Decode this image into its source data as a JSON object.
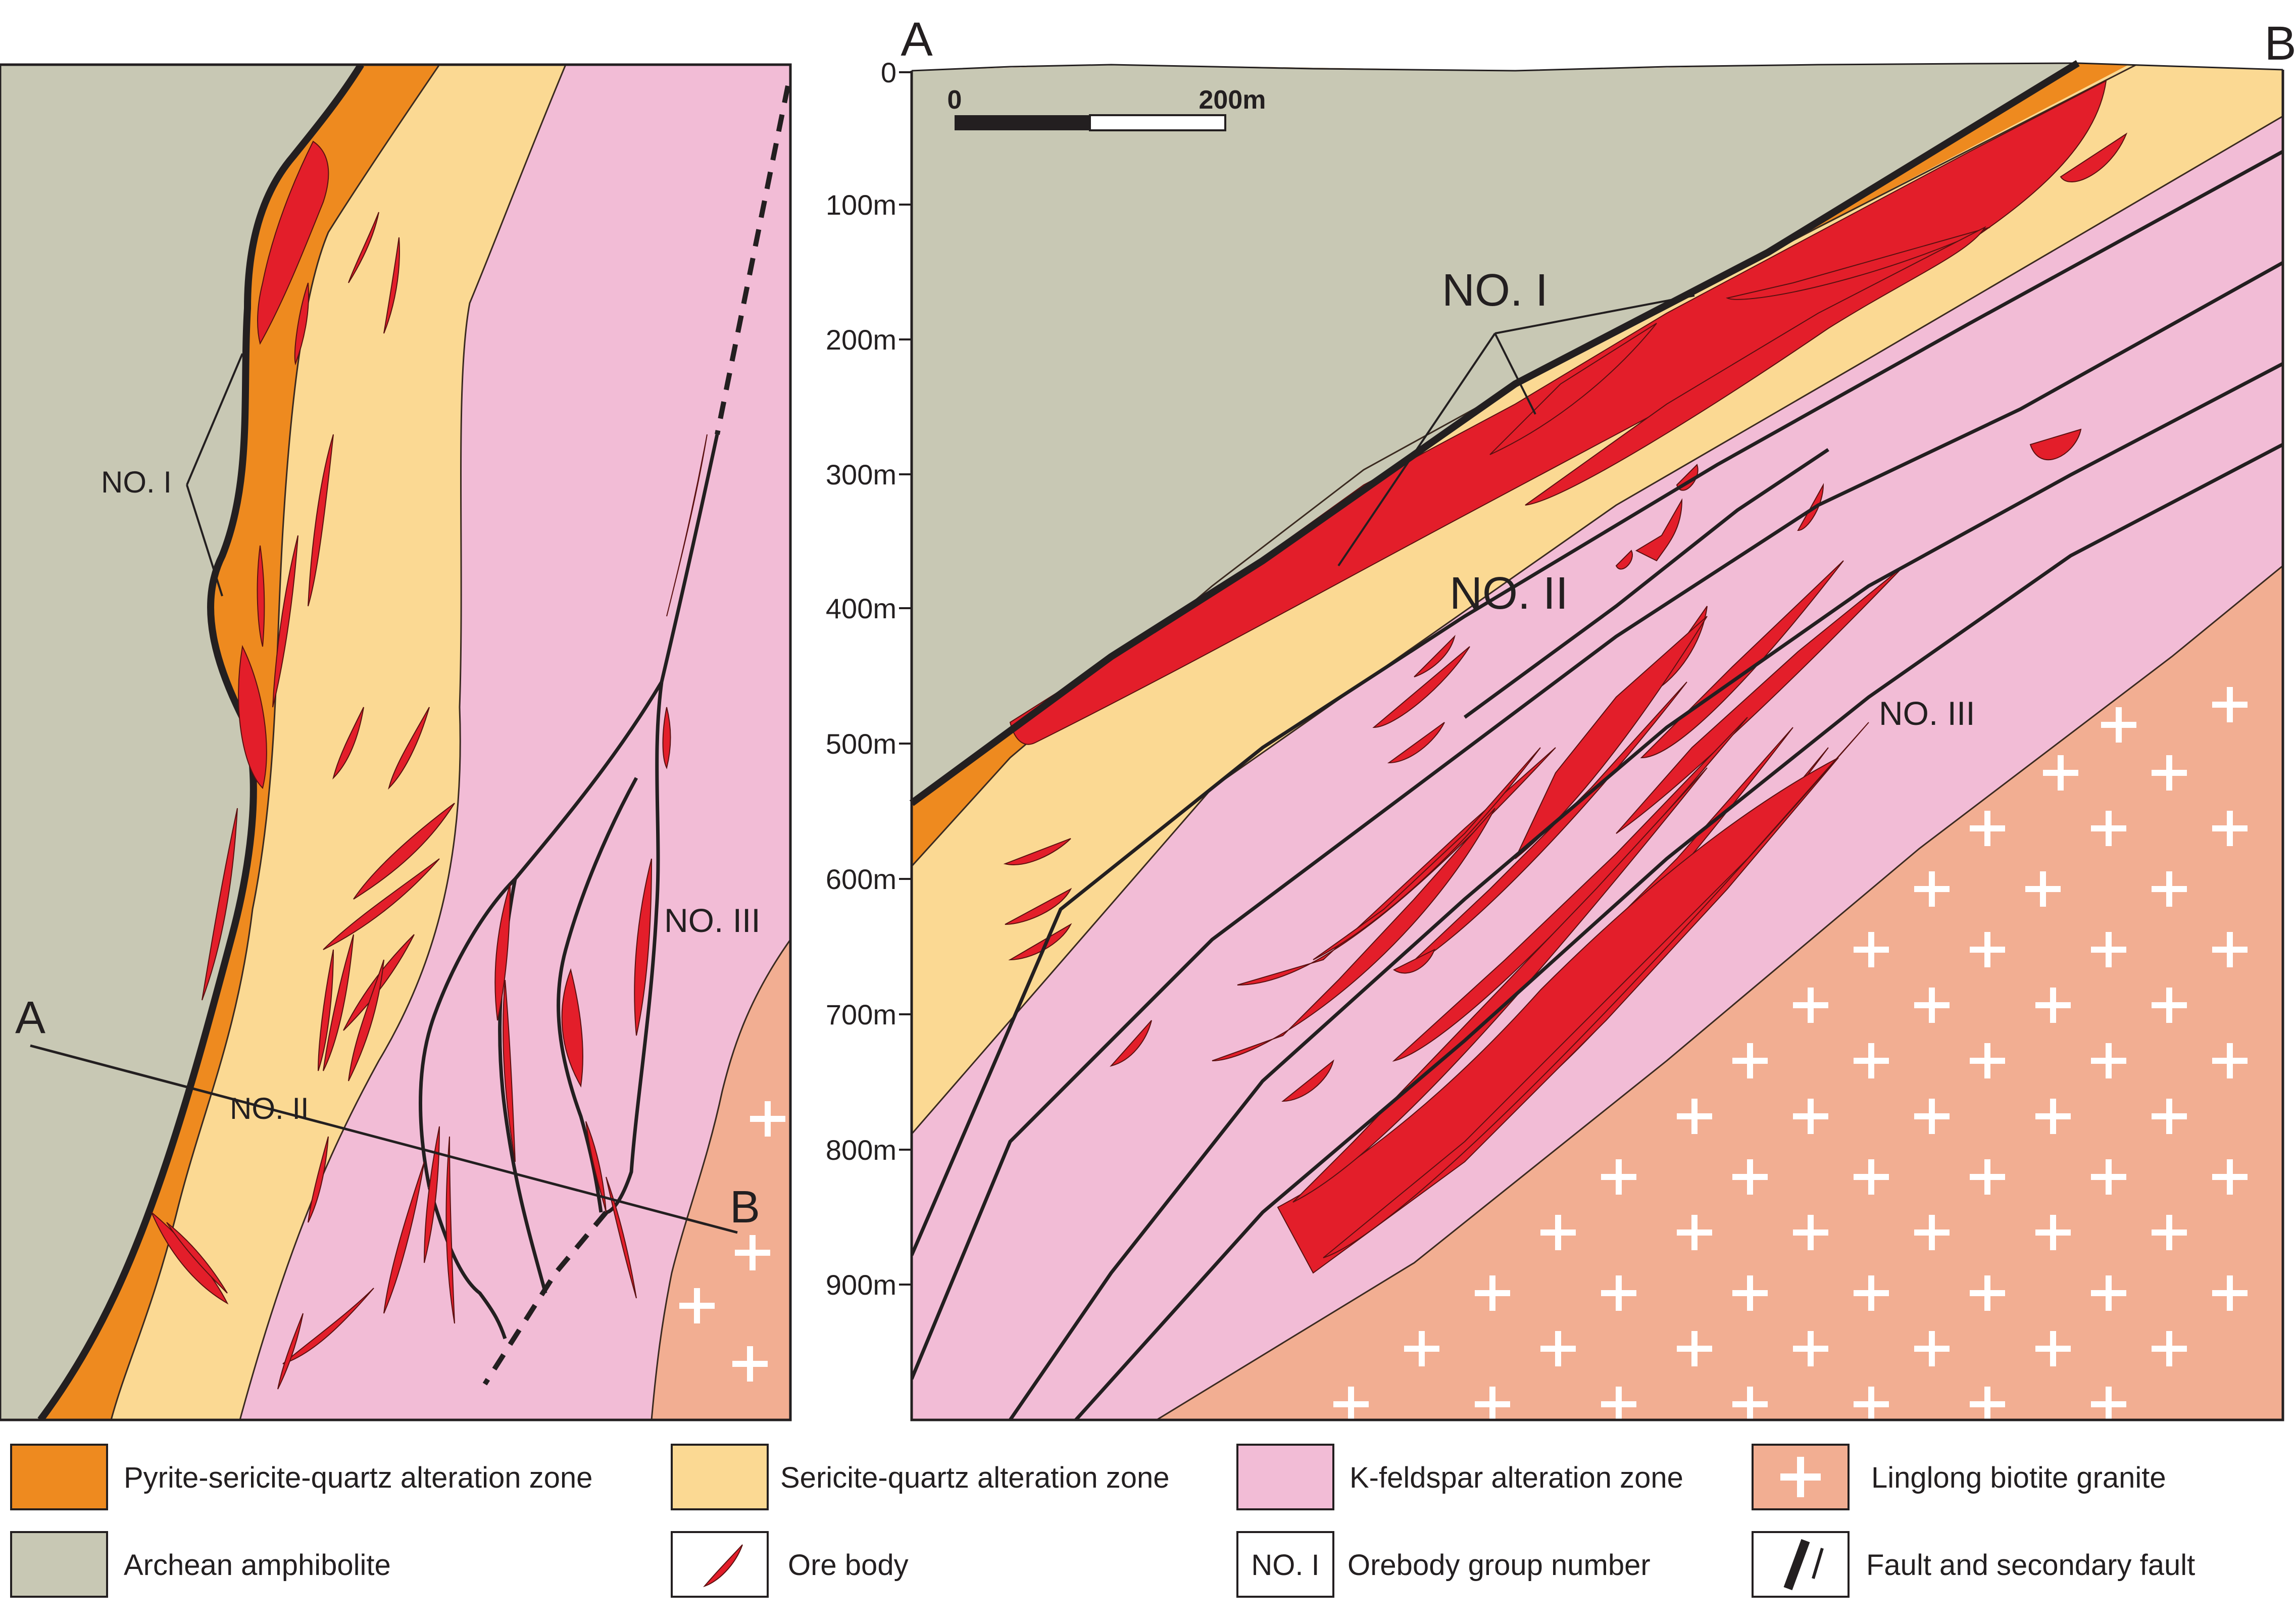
{
  "plan_map": {
    "section_start": "A",
    "section_end": "B",
    "orebody_labels": [
      "NO. I",
      "NO. II",
      "NO. III"
    ]
  },
  "section": {
    "start_label": "A",
    "end_label": "B",
    "depth_ticks": [
      "0",
      "100m",
      "200m",
      "300m",
      "400m",
      "500m",
      "600m",
      "700m",
      "800m",
      "900m"
    ],
    "scale_bar": {
      "start": "0",
      "end": "200m"
    },
    "orebody_labels": [
      "NO. I",
      "NO. II",
      "NO. III"
    ]
  },
  "legend": {
    "items": [
      {
        "label": "Pyrite-sericite-quartz alteration zone",
        "color": "#ee8a1f"
      },
      {
        "label": "Sericite-quartz alteration zone",
        "color": "#fbd993"
      },
      {
        "label": "K-feldspar alteration zone",
        "color": "#f2bcd6"
      },
      {
        "label": "Linglong biotite granite",
        "color": "#f2ae92"
      },
      {
        "label": "Archean amphibolite",
        "color": "#c8c8b4"
      },
      {
        "label": "Ore body",
        "color": "#e31e2a"
      },
      {
        "label": "Orebody group number",
        "sample": "NO. I"
      },
      {
        "label": "Fault and secondary fault"
      }
    ]
  }
}
